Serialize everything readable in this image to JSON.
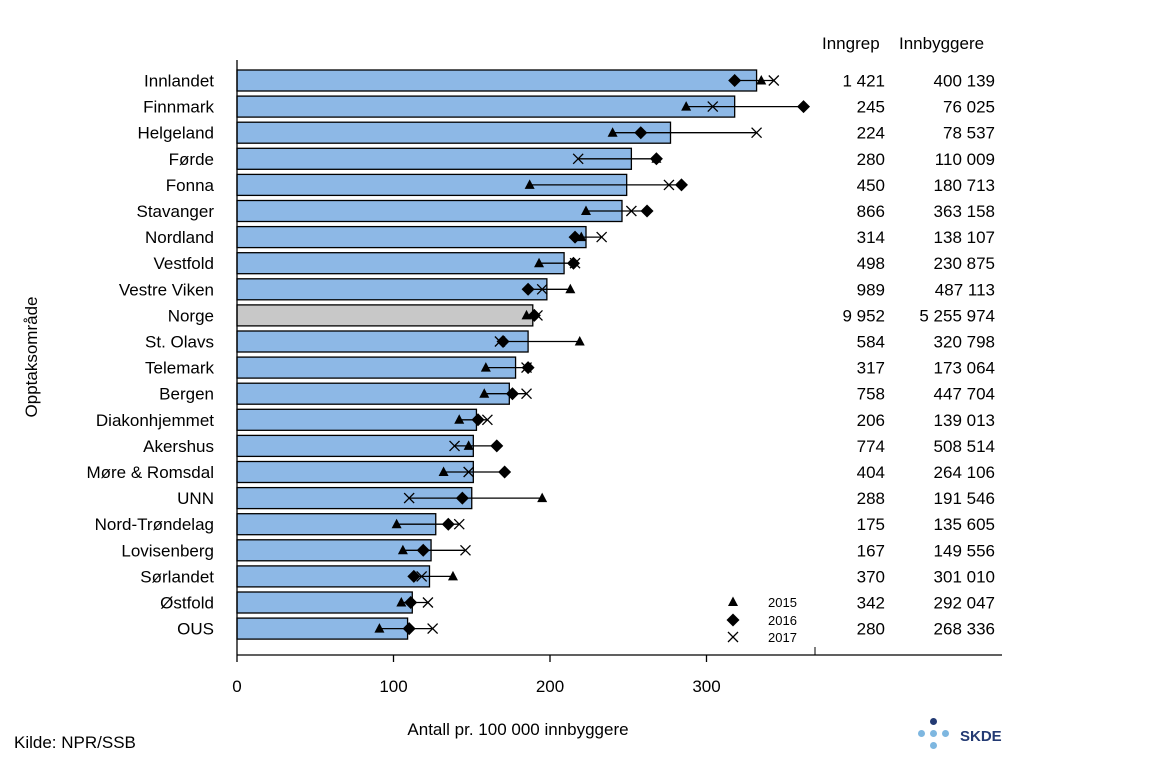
{
  "chart_data": {
    "type": "bar",
    "ylabel": "Opptaksområde",
    "xlabel": "Antall pr. 100 000 innbyggere",
    "xlim": [
      0,
      380
    ],
    "xticks": [
      0,
      100,
      200,
      300
    ],
    "highlight_category": "Norge",
    "colors": {
      "bar": "#8db8e6",
      "highlight": "#c8c8c8",
      "marker": "#000000"
    },
    "columns": [
      "Inngrep",
      "Innbyggere"
    ],
    "legend": {
      "position": "bottom-right",
      "entries": [
        {
          "label": "2015",
          "marker": "triangle"
        },
        {
          "label": "2016",
          "marker": "diamond"
        },
        {
          "label": "2017",
          "marker": "x"
        }
      ]
    },
    "rows": [
      {
        "name": "Innlandet",
        "value": 332,
        "y2015": 335,
        "y2016": 318,
        "y2017": 343,
        "inngrep": "1 421",
        "innbyggere": "400 139"
      },
      {
        "name": "Finnmark",
        "value": 318,
        "y2015": 287,
        "y2016": 362,
        "y2017": 304,
        "inngrep": "245",
        "innbyggere": "76 025"
      },
      {
        "name": "Helgeland",
        "value": 277,
        "y2015": 240,
        "y2016": 258,
        "y2017": 332,
        "inngrep": "224",
        "innbyggere": "78 537"
      },
      {
        "name": "Førde",
        "value": 252,
        "y2015": 268,
        "y2016": 268,
        "y2017": 218,
        "inngrep": "280",
        "innbyggere": "110 009"
      },
      {
        "name": "Fonna",
        "value": 249,
        "y2015": 187,
        "y2016": 284,
        "y2017": 276,
        "inngrep": "450",
        "innbyggere": "180 713"
      },
      {
        "name": "Stavanger",
        "value": 246,
        "y2015": 223,
        "y2016": 262,
        "y2017": 252,
        "inngrep": "866",
        "innbyggere": "363 158"
      },
      {
        "name": "Nordland",
        "value": 223,
        "y2015": 220,
        "y2016": 216,
        "y2017": 233,
        "inngrep": "314",
        "innbyggere": "138 107"
      },
      {
        "name": "Vestfold",
        "value": 209,
        "y2015": 193,
        "y2016": 215,
        "y2017": 216,
        "inngrep": "498",
        "innbyggere": "230 875"
      },
      {
        "name": "Vestre Viken",
        "value": 198,
        "y2015": 213,
        "y2016": 186,
        "y2017": 195,
        "inngrep": "989",
        "innbyggere": "487 113"
      },
      {
        "name": "Norge",
        "value": 189,
        "y2015": 185,
        "y2016": 190,
        "y2017": 192,
        "inngrep": "9 952",
        "innbyggere": "5 255 974"
      },
      {
        "name": "St. Olavs",
        "value": 186,
        "y2015": 219,
        "y2016": 170,
        "y2017": 168,
        "inngrep": "584",
        "innbyggere": "320 798"
      },
      {
        "name": "Telemark",
        "value": 178,
        "y2015": 159,
        "y2016": 186,
        "y2017": 185,
        "inngrep": "317",
        "innbyggere": "173 064"
      },
      {
        "name": "Bergen",
        "value": 174,
        "y2015": 158,
        "y2016": 176,
        "y2017": 185,
        "inngrep": "758",
        "innbyggere": "447 704"
      },
      {
        "name": "Diakonhjemmet",
        "value": 153,
        "y2015": 142,
        "y2016": 154,
        "y2017": 160,
        "inngrep": "206",
        "innbyggere": "139 013"
      },
      {
        "name": "Akershus",
        "value": 151,
        "y2015": 148,
        "y2016": 166,
        "y2017": 139,
        "inngrep": "774",
        "innbyggere": "508 514"
      },
      {
        "name": "Møre & Romsdal",
        "value": 151,
        "y2015": 132,
        "y2016": 171,
        "y2017": 148,
        "inngrep": "404",
        "innbyggere": "264 106"
      },
      {
        "name": "UNN",
        "value": 150,
        "y2015": 195,
        "y2016": 144,
        "y2017": 110,
        "inngrep": "288",
        "innbyggere": "191 546"
      },
      {
        "name": "Nord-Trøndelag",
        "value": 127,
        "y2015": 102,
        "y2016": 135,
        "y2017": 142,
        "inngrep": "175",
        "innbyggere": "135 605"
      },
      {
        "name": "Lovisenberg",
        "value": 124,
        "y2015": 106,
        "y2016": 119,
        "y2017": 146,
        "inngrep": "167",
        "innbyggere": "149 556"
      },
      {
        "name": "Sørlandet",
        "value": 123,
        "y2015": 138,
        "y2016": 113,
        "y2017": 118,
        "inngrep": "370",
        "innbyggere": "301 010"
      },
      {
        "name": "Østfold",
        "value": 112,
        "y2015": 105,
        "y2016": 111,
        "y2017": 122,
        "inngrep": "342",
        "innbyggere": "292 047"
      },
      {
        "name": "OUS",
        "value": 109,
        "y2015": 91,
        "y2016": 110,
        "y2017": 125,
        "inngrep": "280",
        "innbyggere": "268 336"
      }
    ]
  },
  "source": "Kilde: NPR/SSB",
  "logo": {
    "text": "SKDE"
  }
}
